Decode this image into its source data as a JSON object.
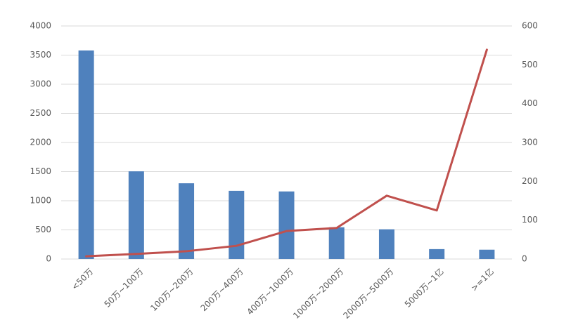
{
  "chart_data": {
    "type": "combo",
    "categories": [
      "<50万",
      "50万~100万",
      "100万~200万",
      "200万~400万",
      "400万~1000万",
      "1000万~2000万",
      "2000万~5000万",
      "5000万~1亿",
      ">=1亿"
    ],
    "series": [
      {
        "type": "bar",
        "color": "#4f81bd",
        "values": [
          3580,
          1505,
          1300,
          1170,
          1160,
          545,
          510,
          170,
          160
        ]
      },
      {
        "type": "line",
        "color": "#c0504d",
        "axis": "y2",
        "values": [
          7,
          13,
          20,
          34,
          72,
          80,
          163,
          125,
          539
        ]
      }
    ],
    "ylim": [
      0,
      4000
    ],
    "yticks": [
      0,
      500,
      1000,
      1500,
      2000,
      2500,
      3000,
      3500,
      4000
    ],
    "y2lim": [
      0,
      600
    ],
    "y2ticks": [
      0,
      100,
      200,
      300,
      400,
      500,
      600
    ],
    "grid": true
  }
}
